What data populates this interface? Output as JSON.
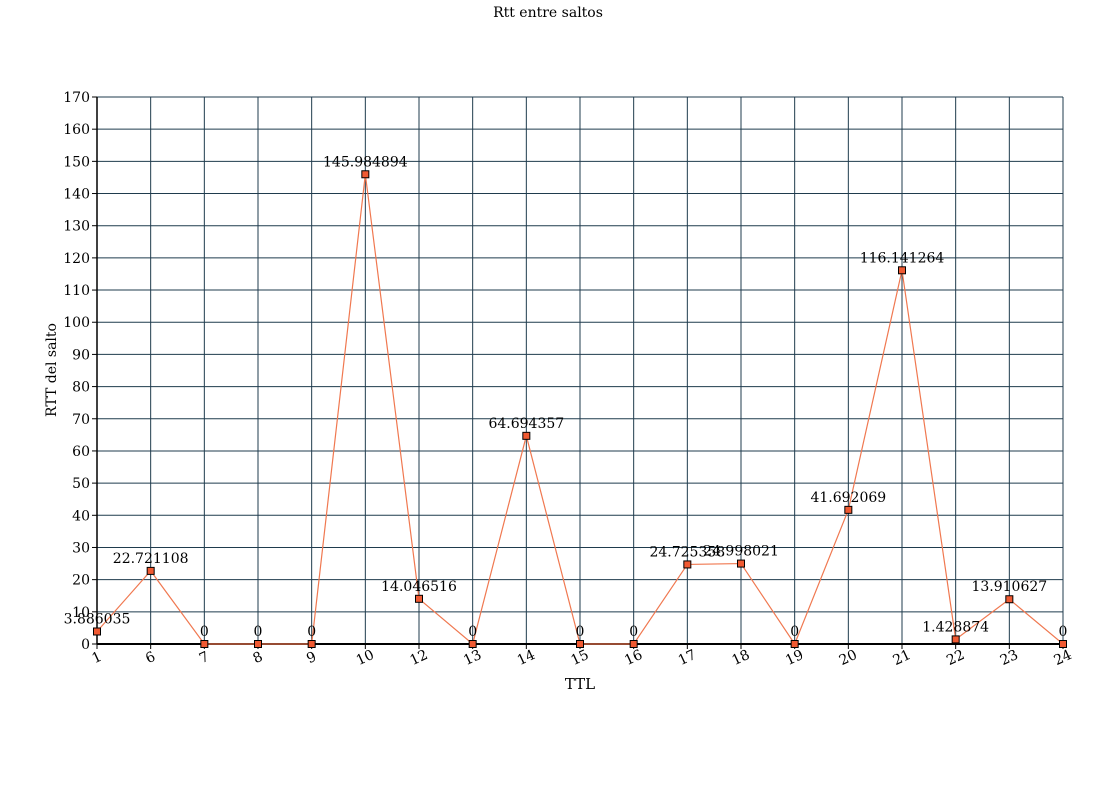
{
  "chart_data": {
    "type": "line",
    "title": "Rtt entre saltos",
    "xlabel": "TTL",
    "ylabel": "RTT del salto",
    "ylim": [
      0,
      170
    ],
    "ytick_step": 10,
    "grid": true,
    "categories": [
      "1",
      "6",
      "7",
      "8",
      "9",
      "10",
      "12",
      "13",
      "14",
      "15",
      "16",
      "17",
      "18",
      "19",
      "20",
      "21",
      "22",
      "23",
      "24"
    ],
    "series": [
      {
        "values": [
          3.886035,
          22.721108,
          0,
          0,
          0,
          145.984894,
          14.046516,
          0,
          64.694357,
          0,
          0,
          24.725358,
          24.998021,
          0,
          41.692069,
          116.141264,
          1.428874,
          13.910627,
          0
        ],
        "labels": [
          "3.886035",
          "22.721108",
          "0",
          "0",
          "0",
          "145.984894",
          "14.046516",
          "0",
          "64.694357",
          "0",
          "0",
          "24.725358",
          "24.998021",
          "0",
          "41.692069",
          "116.141264",
          "1.428874",
          "13.910627",
          "0"
        ]
      }
    ],
    "colors": {
      "line": "#f07850",
      "marker_fill": "#f05a32",
      "marker_edge": "#000000",
      "grid": "#1f3b4d",
      "axis": "#000000"
    }
  }
}
